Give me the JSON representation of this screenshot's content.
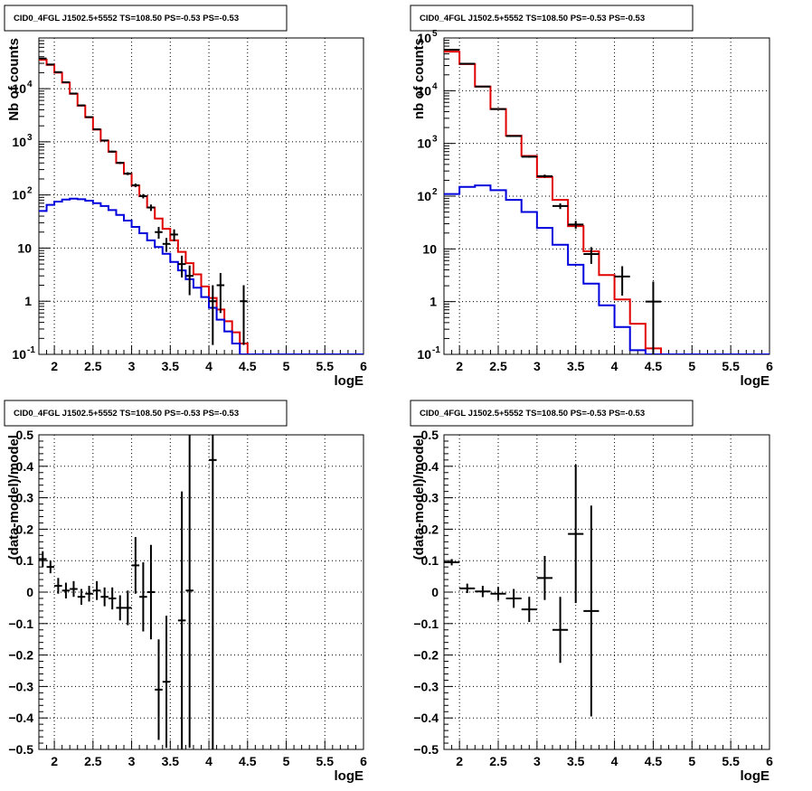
{
  "colors": {
    "data": "#000000",
    "total_model": "#e00000",
    "source_model": "#0000dd",
    "grid": "#000000"
  },
  "chart_data": [
    {
      "type": "line",
      "title": "CID0_4FGL J1502.5+5552 TS=108.50 PS=-0.53 PS=-0.53",
      "xlabel": "logE",
      "ylabel": "Nb of counts",
      "yscale": "log",
      "xlim": [
        1.8,
        6.0
      ],
      "ylim": [
        0.1,
        90000
      ],
      "grid": true,
      "xticks": [
        "2",
        "2.5",
        "3",
        "3.5",
        "4",
        "4.5",
        "5",
        "5.5",
        "6"
      ],
      "yticks": [
        "10^-1",
        "1",
        "10",
        "10^2",
        "10^3",
        "10^4"
      ],
      "bin_edges": [
        1.8,
        1.9,
        2.0,
        2.1,
        2.2,
        2.3,
        2.4,
        2.5,
        2.6,
        2.7,
        2.8,
        2.9,
        3.0,
        3.1,
        3.2,
        3.3,
        3.4,
        3.5,
        3.6,
        3.7,
        3.8,
        3.9,
        4.0,
        4.1,
        4.2,
        4.3,
        4.4,
        4.5,
        4.6,
        4.7,
        4.8,
        4.9,
        5.0,
        5.1,
        5.2,
        5.3,
        5.4,
        5.5,
        5.6,
        5.7,
        5.8,
        5.9,
        6.0
      ],
      "series": [
        {
          "style": "step",
          "color": "red",
          "values": [
            35000,
            28000,
            20000,
            13000,
            8000,
            4800,
            2900,
            1700,
            1050,
            650,
            400,
            250,
            150,
            95,
            58,
            36,
            23,
            14,
            8.5,
            5.2,
            3.2,
            1.9,
            1.15,
            0.7,
            0.42,
            0.26,
            0.16,
            0.1,
            0.1,
            0.1,
            0.1,
            0.1,
            0.1,
            0.1,
            0.1,
            0.1,
            0.1,
            0.1,
            0.1,
            0.1,
            0.1,
            0.1
          ]
        },
        {
          "style": "step",
          "color": "blue",
          "values": [
            50,
            65,
            75,
            82,
            85,
            83,
            78,
            70,
            62,
            52,
            42,
            33,
            25,
            19,
            14,
            10.5,
            7.8,
            5.5,
            3.8,
            2.6,
            1.8,
            1.2,
            0.75,
            0.45,
            0.27,
            0.16,
            0.1,
            0.1,
            0.1,
            0.1,
            0.1,
            0.1,
            0.1,
            0.1,
            0.1,
            0.1,
            0.1,
            0.1,
            0.1,
            0.1,
            0.1,
            0.1
          ]
        },
        {
          "style": "errorbar",
          "color": "black",
          "x": [
            1.85,
            1.95,
            2.05,
            2.15,
            2.25,
            2.35,
            2.45,
            2.55,
            2.65,
            2.75,
            2.85,
            2.95,
            3.05,
            3.15,
            3.25,
            3.35,
            3.45,
            3.55,
            3.65,
            3.75,
            4.05,
            4.15,
            4.45
          ],
          "y": [
            37000,
            28500,
            20500,
            13200,
            8100,
            4850,
            2920,
            1720,
            1060,
            655,
            402,
            252,
            152,
            95,
            58,
            20,
            12,
            18,
            5,
            3,
            1,
            2,
            1
          ],
          "ylo": [
            36800,
            28300,
            20300,
            13050,
            8000,
            4780,
            2870,
            1680,
            1030,
            630,
            382,
            236,
            140,
            86,
            50,
            15,
            8.5,
            13.5,
            2.8,
            1.3,
            0.15,
            0.6,
            0.15
          ],
          "yhi": [
            37200,
            28700,
            20700,
            13350,
            8200,
            4920,
            2970,
            1760,
            1090,
            680,
            422,
            268,
            164,
            104,
            66,
            25,
            15.5,
            22.5,
            7.2,
            4.7,
            2.0,
            3.4,
            2.0
          ]
        }
      ]
    },
    {
      "type": "line",
      "title": "CID0_4FGL J1502.5+5552 TS=108.50 PS=-0.53 PS=-0.53",
      "xlabel": "logE",
      "ylabel": "nb of counts",
      "yscale": "log",
      "xlim": [
        1.8,
        6.0
      ],
      "ylim": [
        0.1,
        100000
      ],
      "grid": true,
      "xticks": [
        "2",
        "2.5",
        "3",
        "3.5",
        "4",
        "4.5",
        "5",
        "5.5",
        "6"
      ],
      "yticks": [
        "10^-1",
        "1",
        "10",
        "10^2",
        "10^3",
        "10^4",
        "10^5"
      ],
      "bin_edges": [
        1.8,
        2.0,
        2.2,
        2.4,
        2.6,
        2.8,
        3.0,
        3.2,
        3.4,
        3.6,
        3.8,
        4.0,
        4.2,
        4.4,
        4.6,
        4.8,
        5.0,
        5.2,
        5.4,
        5.6,
        5.8,
        6.0
      ],
      "series": [
        {
          "style": "step",
          "color": "red",
          "values": [
            55000,
            32000,
            12000,
            4500,
            1400,
            580,
            230,
            85,
            27,
            9,
            3.2,
            1.1,
            0.38,
            0.13,
            0.1,
            0.1,
            0.1,
            0.1,
            0.1,
            0.1,
            0.1
          ]
        },
        {
          "style": "step",
          "color": "blue",
          "values": [
            110,
            150,
            160,
            130,
            85,
            50,
            25,
            12,
            5,
            2.2,
            0.85,
            0.33,
            0.12,
            0.1,
            0.1,
            0.1,
            0.1,
            0.1,
            0.1,
            0.1,
            0.1
          ]
        },
        {
          "style": "errorbar",
          "color": "black",
          "x": [
            1.9,
            2.1,
            2.3,
            2.5,
            2.7,
            2.9,
            3.1,
            3.3,
            3.5,
            3.7,
            4.1,
            4.5
          ],
          "y": [
            60000,
            32500,
            12000,
            4500,
            1380,
            560,
            240,
            65,
            29,
            8,
            3,
            1
          ],
          "ylo": [
            59700,
            32300,
            11900,
            4430,
            1340,
            537,
            224,
            57,
            24,
            5.2,
            1.3,
            0.1
          ],
          "yhi": [
            60300,
            32700,
            12100,
            4570,
            1420,
            583,
            256,
            73,
            34,
            10.8,
            4.7,
            2.4
          ]
        }
      ]
    },
    {
      "type": "scatter",
      "title": "CID0_4FGL J1502.5+5552 TS=108.50 PS=-0.53 PS=-0.53",
      "xlabel": "logE",
      "ylabel": "(data-model)/model",
      "xlim": [
        1.8,
        6.0
      ],
      "ylim": [
        -0.5,
        0.5
      ],
      "grid": true,
      "xticks": [
        "2",
        "2.5",
        "3",
        "3.5",
        "4",
        "4.5",
        "5",
        "5.5",
        "6"
      ],
      "yticks": [
        "-0.5",
        "-0.4",
        "-0.3",
        "-0.2",
        "-0.1",
        "0",
        "0.1",
        "0.2",
        "0.3",
        "0.4",
        "0.5"
      ],
      "points": {
        "x": [
          1.85,
          1.95,
          2.05,
          2.15,
          2.25,
          2.35,
          2.45,
          2.55,
          2.65,
          2.75,
          2.85,
          2.95,
          3.05,
          3.15,
          3.25,
          3.35,
          3.45,
          3.65,
          3.75,
          4.05
        ],
        "y": [
          0.105,
          0.08,
          0.02,
          0.005,
          0.01,
          -0.015,
          -0.005,
          0.005,
          -0.015,
          -0.02,
          -0.05,
          -0.05,
          0.085,
          -0.015,
          0.0,
          -0.31,
          -0.285,
          -0.09,
          0.005,
          0.42
        ],
        "err": [
          0.025,
          0.02,
          0.025,
          0.025,
          0.025,
          0.025,
          0.025,
          0.03,
          0.03,
          0.035,
          0.04,
          0.055,
          0.09,
          0.11,
          0.15,
          0.16,
          0.21,
          0.41,
          0.5,
          1.0
        ]
      }
    },
    {
      "type": "scatter",
      "title": "CID0_4FGL J1502.5+5552 TS=108.50 PS=-0.53 PS=-0.53",
      "xlabel": "logE",
      "ylabel": "(data-model)/model",
      "xlim": [
        1.8,
        6.0
      ],
      "ylim": [
        -0.5,
        0.5
      ],
      "grid": true,
      "xticks": [
        "2",
        "2.5",
        "3",
        "3.5",
        "4",
        "4.5",
        "5",
        "5.5",
        "6"
      ],
      "yticks": [
        "-0.5",
        "-0.4",
        "-0.3",
        "-0.2",
        "-0.1",
        "0",
        "0.1",
        "0.2",
        "0.3",
        "0.4",
        "0.5"
      ],
      "points": {
        "x": [
          1.9,
          2.1,
          2.3,
          2.5,
          2.7,
          2.9,
          3.1,
          3.3,
          3.5,
          3.7
        ],
        "y": [
          0.095,
          0.012,
          0.002,
          -0.005,
          -0.02,
          -0.055,
          0.045,
          -0.12,
          0.185,
          -0.06
        ],
        "err": [
          0.01,
          0.015,
          0.018,
          0.022,
          0.03,
          0.04,
          0.07,
          0.105,
          0.22,
          0.335
        ]
      }
    }
  ]
}
